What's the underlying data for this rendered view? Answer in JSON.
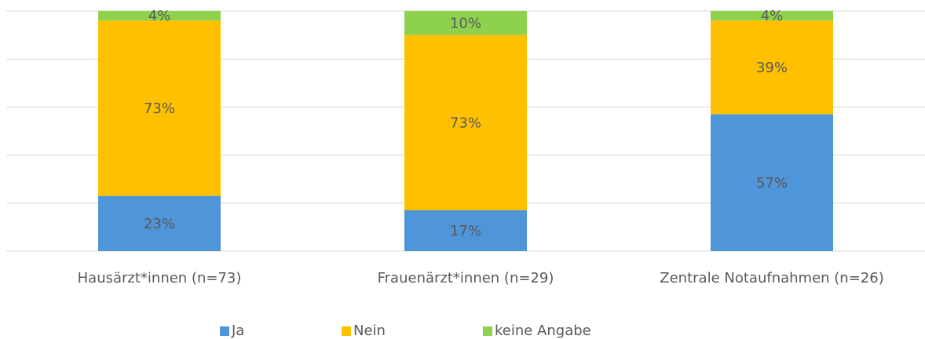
{
  "chart_data": {
    "type": "stacked_bar",
    "categories": [
      "Hausärzt*innen (n=73)",
      "Frauenärzt*innen (n=29)",
      "Zentrale Notaufnahmen (n=26)"
    ],
    "series": [
      {
        "name": "Ja",
        "color": "#4e95d9",
        "values": [
          23,
          17,
          57
        ],
        "value_labels": [
          "23%",
          "17%",
          "57%"
        ]
      },
      {
        "name": "Nein",
        "color": "#ffc000",
        "values": [
          73,
          73,
          39
        ],
        "value_labels": [
          "73%",
          "73%",
          "39%"
        ]
      },
      {
        "name": "keine Angabe",
        "color": "#8ed14d",
        "values": [
          4,
          10,
          4
        ],
        "value_labels": [
          "4%",
          "10%",
          "4%"
        ]
      }
    ],
    "ylim": [
      0,
      100
    ],
    "yticks": [
      0,
      20,
      40,
      60,
      80,
      100
    ],
    "grid": true,
    "legend": "bottom"
  }
}
